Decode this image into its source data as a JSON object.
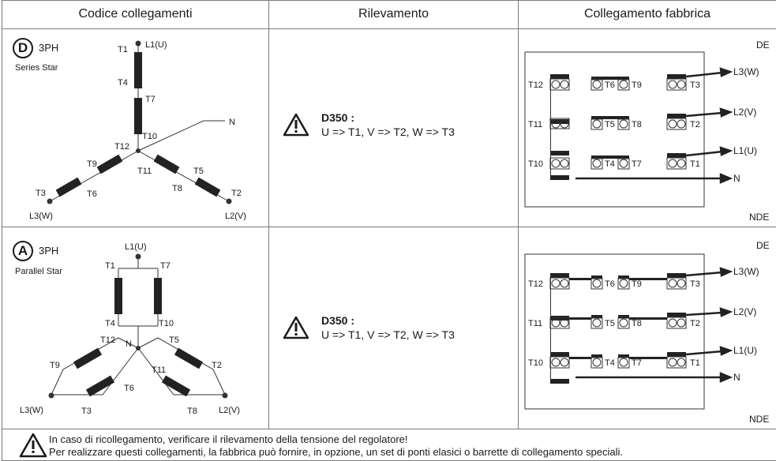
{
  "headers": {
    "codice": "Codice collegamenti",
    "rilevamento": "Rilevamento",
    "fabbrica": "Collegamento fabbrica"
  },
  "rows": [
    {
      "code": "D",
      "phase": "3PH",
      "name": "Series Star",
      "sensing_title": "D350 :",
      "sensing_text": "U => T1, V => T2, W => T3",
      "de": "DE",
      "nde": "NDE"
    },
    {
      "code": "A",
      "phase": "3PH",
      "name": "Parallel Star",
      "sensing_title": "D350 :",
      "sensing_text": "U => T1, V => T2, W => T3",
      "de": "DE",
      "nde": "NDE"
    }
  ],
  "labels": {
    "L1": "L1(U)",
    "L2": "L2(V)",
    "L3": "L3(W)",
    "N": "N",
    "T1": "T1",
    "T2": "T2",
    "T3": "T3",
    "T4": "T4",
    "T5": "T5",
    "T6": "T6",
    "T7": "T7",
    "T8": "T8",
    "T9": "T9",
    "T10": "T10",
    "T11": "T11",
    "T12": "T12"
  },
  "footer": {
    "line1": "In caso di ricollegamento, verificare il rilevamento della tensione del regolatore!",
    "line2": "Per realizzare questi collegamenti, la fabbrica può fornire, in opzione, un set di ponti elasici o barrette di collegamento speciali."
  },
  "colors": {
    "line": "#333333",
    "block": "#222222",
    "terminal": "#555555"
  }
}
